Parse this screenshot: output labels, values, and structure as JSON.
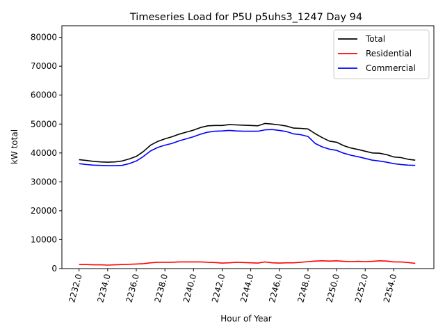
{
  "chart_data": {
    "type": "line",
    "title": "Timeseries Load for P5U p5uhs3_1247  Day 94",
    "xlabel": "Hour of Year",
    "ylabel": "kW total",
    "xlim": [
      2230.8,
      2256.8
    ],
    "ylim": [
      0,
      84000
    ],
    "xticks": [
      2232,
      2234,
      2236,
      2238,
      2240,
      2242,
      2244,
      2246,
      2248,
      2250,
      2252,
      2254
    ],
    "xtick_labels": [
      "2232.0",
      "2234.0",
      "2236.0",
      "2238.0",
      "2240.0",
      "2242.0",
      "2244.0",
      "2246.0",
      "2248.0",
      "2250.0",
      "2252.0",
      "2254.0"
    ],
    "yticks": [
      0,
      10000,
      20000,
      30000,
      40000,
      50000,
      60000,
      70000,
      80000
    ],
    "ytick_labels": [
      "0",
      "10000",
      "20000",
      "30000",
      "40000",
      "50000",
      "60000",
      "70000",
      "80000"
    ],
    "grid": false,
    "legend_position": "top-right",
    "x": [
      2232,
      2232.5,
      2233,
      2233.5,
      2234,
      2234.5,
      2235,
      2235.5,
      2236,
      2236.5,
      2237,
      2237.5,
      2238,
      2238.5,
      2239,
      2239.5,
      2240,
      2240.5,
      2241,
      2241.5,
      2242,
      2242.5,
      2243,
      2243.5,
      2244,
      2244.5,
      2245,
      2245.5,
      2246,
      2246.5,
      2247,
      2247.5,
      2248,
      2248.5,
      2249,
      2249.5,
      2250,
      2250.5,
      2251,
      2251.5,
      2252,
      2252.5,
      2253,
      2253.5,
      2254,
      2254.5,
      2255,
      2255.5
    ],
    "series": [
      {
        "name": "Total",
        "color": "#000000",
        "values": [
          37700,
          37400,
          37100,
          36900,
          36800,
          36900,
          37200,
          37900,
          38800,
          40500,
          42700,
          44000,
          44900,
          45600,
          46500,
          47200,
          47900,
          48800,
          49400,
          49500,
          49500,
          49800,
          49700,
          49600,
          49500,
          49400,
          50200,
          50000,
          49700,
          49300,
          48600,
          48500,
          48300,
          46700,
          45300,
          44100,
          43700,
          42500,
          41700,
          41200,
          40600,
          40000,
          39900,
          39400,
          38600,
          38400,
          37800,
          37500
        ]
      },
      {
        "name": "Residential",
        "color": "#ff0000",
        "values": [
          1400,
          1400,
          1300,
          1300,
          1200,
          1300,
          1400,
          1500,
          1600,
          1700,
          2000,
          2200,
          2200,
          2200,
          2300,
          2300,
          2300,
          2300,
          2200,
          2100,
          1900,
          2000,
          2200,
          2100,
          2000,
          1900,
          2300,
          2000,
          1900,
          2000,
          2000,
          2200,
          2400,
          2600,
          2700,
          2600,
          2700,
          2500,
          2400,
          2500,
          2400,
          2500,
          2700,
          2600,
          2300,
          2300,
          2100,
          1800
        ]
      },
      {
        "name": "Commercial",
        "color": "#0000ff",
        "values": [
          36300,
          36000,
          35800,
          35700,
          35600,
          35600,
          35700,
          36300,
          37200,
          38800,
          40700,
          41900,
          42700,
          43300,
          44200,
          44900,
          45600,
          46500,
          47200,
          47500,
          47600,
          47800,
          47600,
          47500,
          47500,
          47500,
          48000,
          48100,
          47800,
          47400,
          46600,
          46300,
          45700,
          43300,
          42100,
          41300,
          40900,
          39900,
          39200,
          38700,
          38100,
          37500,
          37200,
          36800,
          36300,
          36000,
          35800,
          35700
        ]
      }
    ]
  }
}
